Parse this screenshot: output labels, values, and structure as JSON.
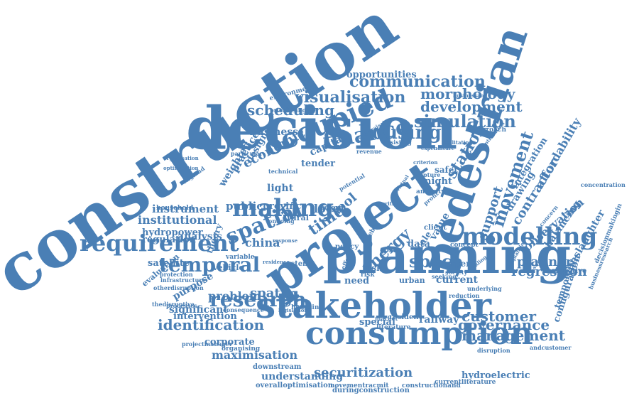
{
  "colors": {
    "word": "#4a7fb5",
    "background": "#ffffff"
  },
  "words": [
    "construction",
    "decision",
    "project",
    "planning",
    "pedestrian",
    "stakeholder",
    "consumption",
    "occupied",
    "modelling",
    "requirement",
    "making",
    "spatial",
    "temporal",
    "finance",
    "housing",
    "research",
    "simulation",
    "movement",
    "energy",
    "space",
    "visualisation",
    "communication",
    "scheduling",
    "development",
    "morphology",
    "identification",
    "governance",
    "management",
    "customer",
    "support",
    "contractor",
    "station",
    "securitization",
    "maximisation",
    "regression",
    "planner",
    "observation",
    "time",
    "tool",
    "economic",
    "institutional",
    "significant",
    "understanding",
    "china",
    "spatio",
    "problem",
    "opportunities",
    "public",
    "local",
    "instrument",
    "affordability",
    "drawing",
    "configuration",
    "manslaughter",
    "balancing",
    "temporary",
    "integration",
    "hydroelectric",
    "capital",
    "business",
    "practice",
    "weighted",
    "design",
    "light",
    "analysis",
    "regulation",
    "satellite",
    "hydropower",
    "intervention",
    "corporate",
    "railway",
    "special",
    "current",
    "paper",
    "value",
    "data",
    "scale",
    "night",
    "safety",
    "tender",
    "rural",
    "province",
    "need",
    "task",
    "purpose",
    "evaluation",
    "theory",
    "vehicle",
    "variable",
    "system",
    "downstream",
    "hoarding",
    "resident",
    "literature",
    "overalloptimisation",
    "duringconstruction",
    "movementracmit",
    "constructionand",
    "currentliterature",
    "projectmanager",
    "organising",
    "infrastructure",
    "otherdisruption",
    "protection",
    "household",
    "thedisruptive",
    "consequence",
    "disruption",
    "underlying",
    "objective",
    "concentration",
    "decisionmakingin",
    "businessresearch",
    "approach",
    "expenditure",
    "amenity",
    "client",
    "concept",
    "society",
    "environment",
    "prioritising",
    "particular",
    "england",
    "optimisation",
    "organisation",
    "technical",
    "criterion",
    "revenue",
    "assisting",
    "appraisal",
    "profit",
    "facilitating",
    "contribution",
    "businessand",
    "inequalities",
    "processes",
    "ongoing",
    "reform",
    "policy",
    "market",
    "urban",
    "cost",
    "debt",
    "risk",
    "seeking",
    "reduction",
    "andcustomer",
    "potential",
    "legislation",
    "residence",
    "response",
    "effect",
    "virtual",
    "critical",
    "capture",
    "swimming",
    "concern",
    "tackling"
  ]
}
